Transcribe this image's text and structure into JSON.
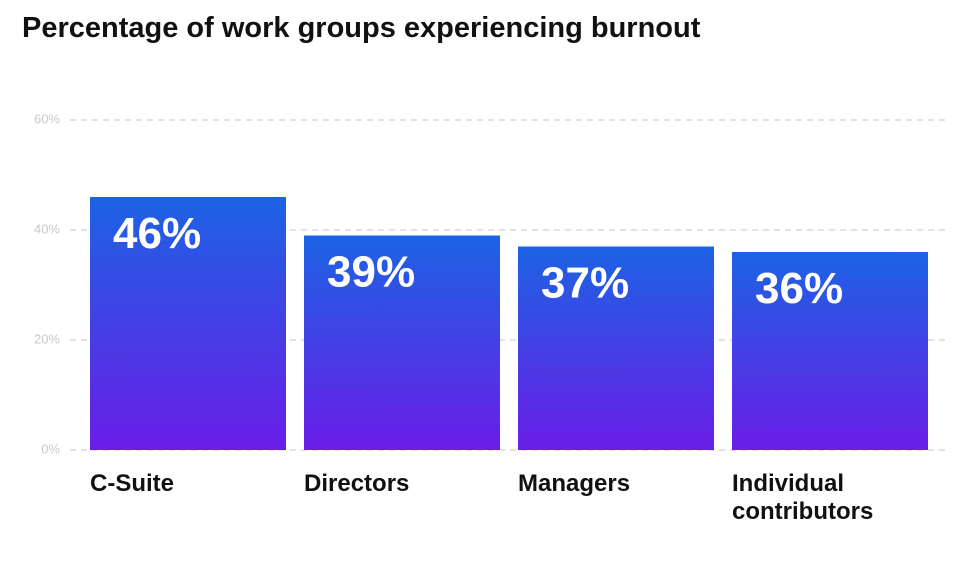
{
  "chart_data": {
    "type": "bar",
    "title": "Percentage of work groups experiencing burnout",
    "categories": [
      "C-Suite",
      "Directors",
      "Managers",
      "Individual contributors"
    ],
    "values": [
      46,
      39,
      37,
      36
    ],
    "value_labels": [
      "46%",
      "39%",
      "37%",
      "36%"
    ],
    "gradient": [
      "#1c63e4",
      "#6a1de6"
    ],
    "ylim": [
      0,
      60
    ],
    "yticks": [
      {
        "value": 0,
        "label": "0%"
      },
      {
        "value": 20,
        "label": "20%"
      },
      {
        "value": 40,
        "label": "40%"
      },
      {
        "value": 60,
        "label": "60%"
      }
    ],
    "grid": true
  }
}
